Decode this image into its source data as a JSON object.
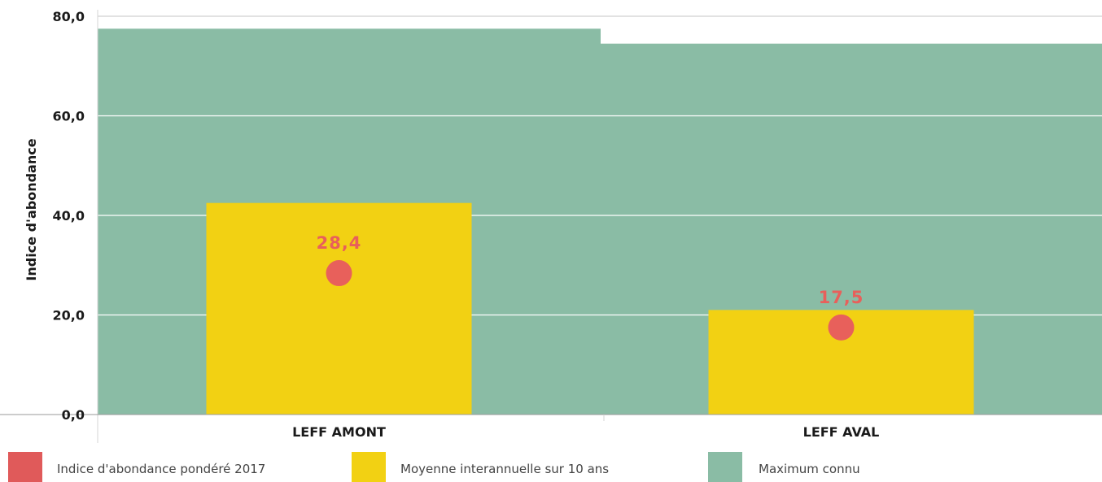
{
  "chart_data": {
    "type": "bar",
    "categories": [
      "LEFF AMONT",
      "LEFF AVAL"
    ],
    "ylabel": "Indice d'abondance",
    "xlabel": "",
    "ylim": [
      0,
      80
    ],
    "yticks": [
      "0,0",
      "20,0",
      "40,0",
      "60,0",
      "80,0"
    ],
    "ytick_values": [
      0,
      20,
      40,
      60,
      80
    ],
    "grid": true,
    "legend_position": "bottom",
    "series": [
      {
        "name": "Maximum connu",
        "kind": "background-area",
        "color": "#8abca5",
        "values": [
          77.5,
          74.5
        ]
      },
      {
        "name": "Moyenne interannuelle sur 10 ans",
        "kind": "bar",
        "color": "#f2d113",
        "values": [
          42.5,
          21.0
        ]
      },
      {
        "name": "Indice d'abondance pondéré 2017",
        "kind": "point",
        "color": "#e8605b",
        "values": [
          28.4,
          17.5
        ],
        "labels": [
          "28,4",
          "17,5"
        ]
      }
    ]
  },
  "legend": {
    "items": [
      {
        "label": "Indice d'abondance pondéré 2017",
        "color": "#e05a5a"
      },
      {
        "label": "Moyenne interannuelle sur 10 ans",
        "color": "#f2d113"
      },
      {
        "label": "Maximum connu",
        "color": "#8abca5"
      }
    ]
  }
}
